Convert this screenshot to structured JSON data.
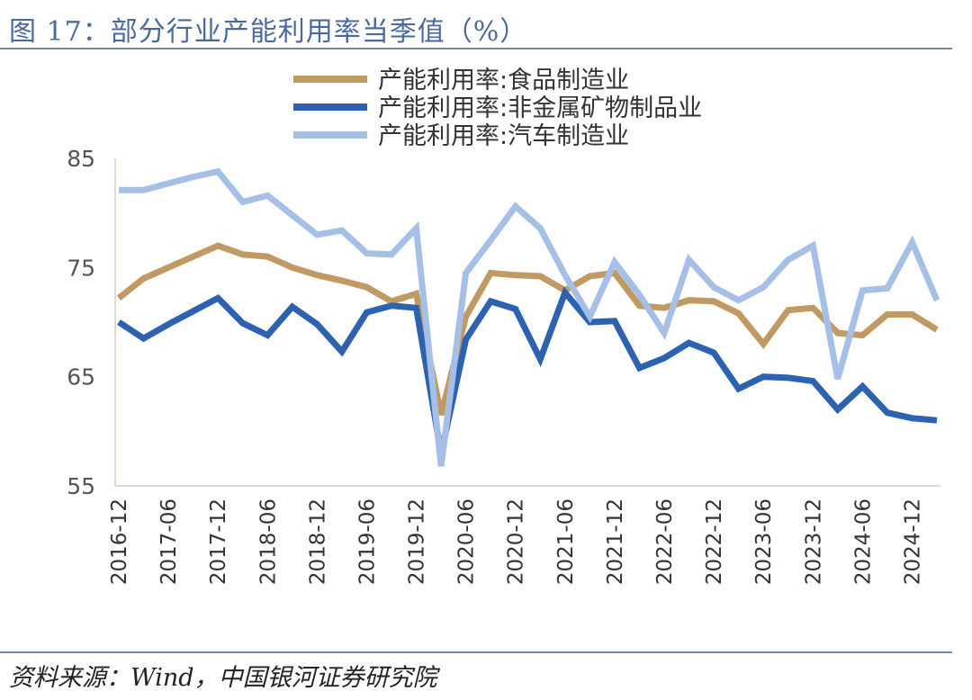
{
  "header": {
    "title": "图 17：部分行业产能利用率当季值（%）"
  },
  "footer": {
    "source": "资料来源：Wind，中国银河证券研究院"
  },
  "chart_data": {
    "type": "line",
    "title": "图 17：部分行业产能利用率当季值（%）",
    "xlabel": "",
    "ylabel": "",
    "ylim": [
      55,
      85
    ],
    "yticks": [
      55,
      65,
      75,
      85
    ],
    "grid": false,
    "legend_position": "top",
    "tick_labels": [
      "2016-12",
      "2017-06",
      "2017-12",
      "2018-06",
      "2018-12",
      "2019-06",
      "2019-12",
      "2020-06",
      "2020-12",
      "2021-06",
      "2021-12",
      "2022-06",
      "2022-12",
      "2023-06",
      "2023-12",
      "2024-06",
      "2024-12"
    ],
    "x": [
      "2016-12",
      "2017-03",
      "2017-06",
      "2017-09",
      "2017-12",
      "2018-03",
      "2018-06",
      "2018-09",
      "2018-12",
      "2019-03",
      "2019-06",
      "2019-09",
      "2019-12",
      "2020-03",
      "2020-06",
      "2020-09",
      "2020-12",
      "2021-03",
      "2021-06",
      "2021-09",
      "2021-12",
      "2022-03",
      "2022-06",
      "2022-09",
      "2022-12",
      "2023-03",
      "2023-06",
      "2023-09",
      "2023-12",
      "2024-03",
      "2024-06",
      "2024-09",
      "2024-12",
      "2025-03"
    ],
    "series": [
      {
        "name": "产能利用率:食品制造业",
        "color": "#c09a62",
        "values": [
          72.2,
          74.0,
          75.0,
          76.0,
          77.0,
          76.2,
          76.0,
          75.0,
          74.3,
          73.8,
          73.2,
          71.9,
          72.6,
          61.5,
          70.5,
          74.5,
          74.3,
          74.2,
          72.9,
          74.2,
          74.5,
          71.5,
          71.3,
          72.0,
          71.9,
          70.8,
          68.0,
          71.1,
          71.3,
          69.0,
          68.8,
          70.7,
          70.7,
          69.3
        ]
      },
      {
        "name": "产能利用率:非金属矿物制品业",
        "color": "#2c62b0",
        "values": [
          70.0,
          68.5,
          69.8,
          71.0,
          72.2,
          69.9,
          68.8,
          71.4,
          69.8,
          67.3,
          70.9,
          71.5,
          71.3,
          58.0,
          68.4,
          71.9,
          71.2,
          66.6,
          72.7,
          70.0,
          70.1,
          65.8,
          66.7,
          68.1,
          67.2,
          63.9,
          65.0,
          64.9,
          64.6,
          62.0,
          64.1,
          61.7,
          61.2,
          61.0
        ]
      },
      {
        "name": "产能利用率:汽车制造业",
        "color": "#a5bfe6",
        "values": [
          82.1,
          82.1,
          82.7,
          83.3,
          83.8,
          81.0,
          81.6,
          79.8,
          78.0,
          78.4,
          76.3,
          76.2,
          78.6,
          56.8,
          74.5,
          77.5,
          80.6,
          78.6,
          74.3,
          70.5,
          75.5,
          72.5,
          69.0,
          75.7,
          73.2,
          72.0,
          73.2,
          75.7,
          77.0,
          64.8,
          72.9,
          73.1,
          77.3,
          72.0
        ]
      }
    ]
  }
}
